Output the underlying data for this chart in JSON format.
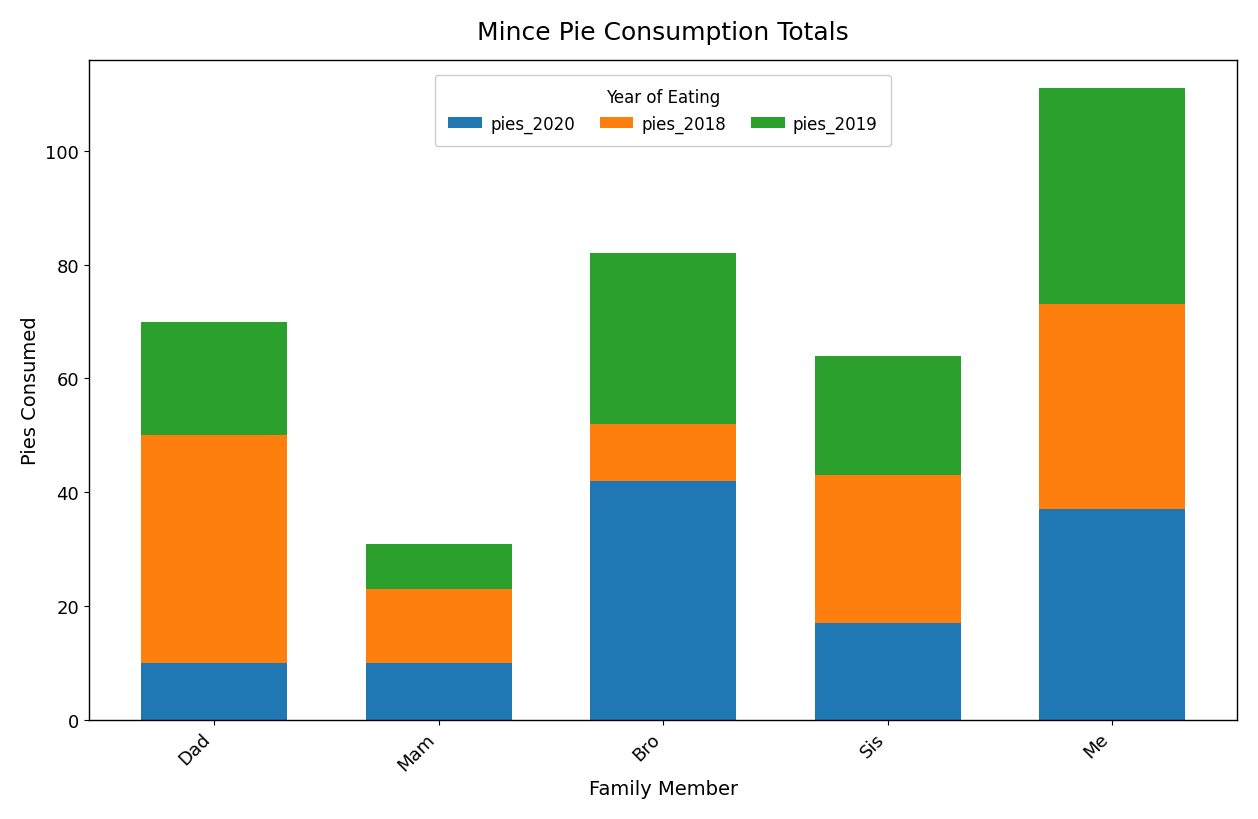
{
  "categories": [
    "Dad",
    "Mam",
    "Bro",
    "Sis",
    "Me"
  ],
  "pies_2020": [
    10,
    10,
    42,
    17,
    37
  ],
  "pies_2018": [
    40,
    13,
    10,
    26,
    36
  ],
  "pies_2019": [
    20,
    8,
    30,
    21,
    38
  ],
  "colors": {
    "pies_2020": "#1f77b4",
    "pies_2018": "#ff7f0e",
    "pies_2019": "#2ca02c"
  },
  "title": "Mince Pie Consumption Totals",
  "xlabel": "Family Member",
  "ylabel": "Pies Consumed",
  "legend_title": "Year of Eating",
  "legend_labels": [
    "pies_2020",
    "pies_2018",
    "pies_2019"
  ],
  "ylim": [
    0,
    116
  ],
  "yticks": [
    0,
    20,
    40,
    60,
    80,
    100
  ],
  "title_fontsize": 18,
  "label_fontsize": 14,
  "tick_fontsize": 13,
  "bar_width": 0.65
}
